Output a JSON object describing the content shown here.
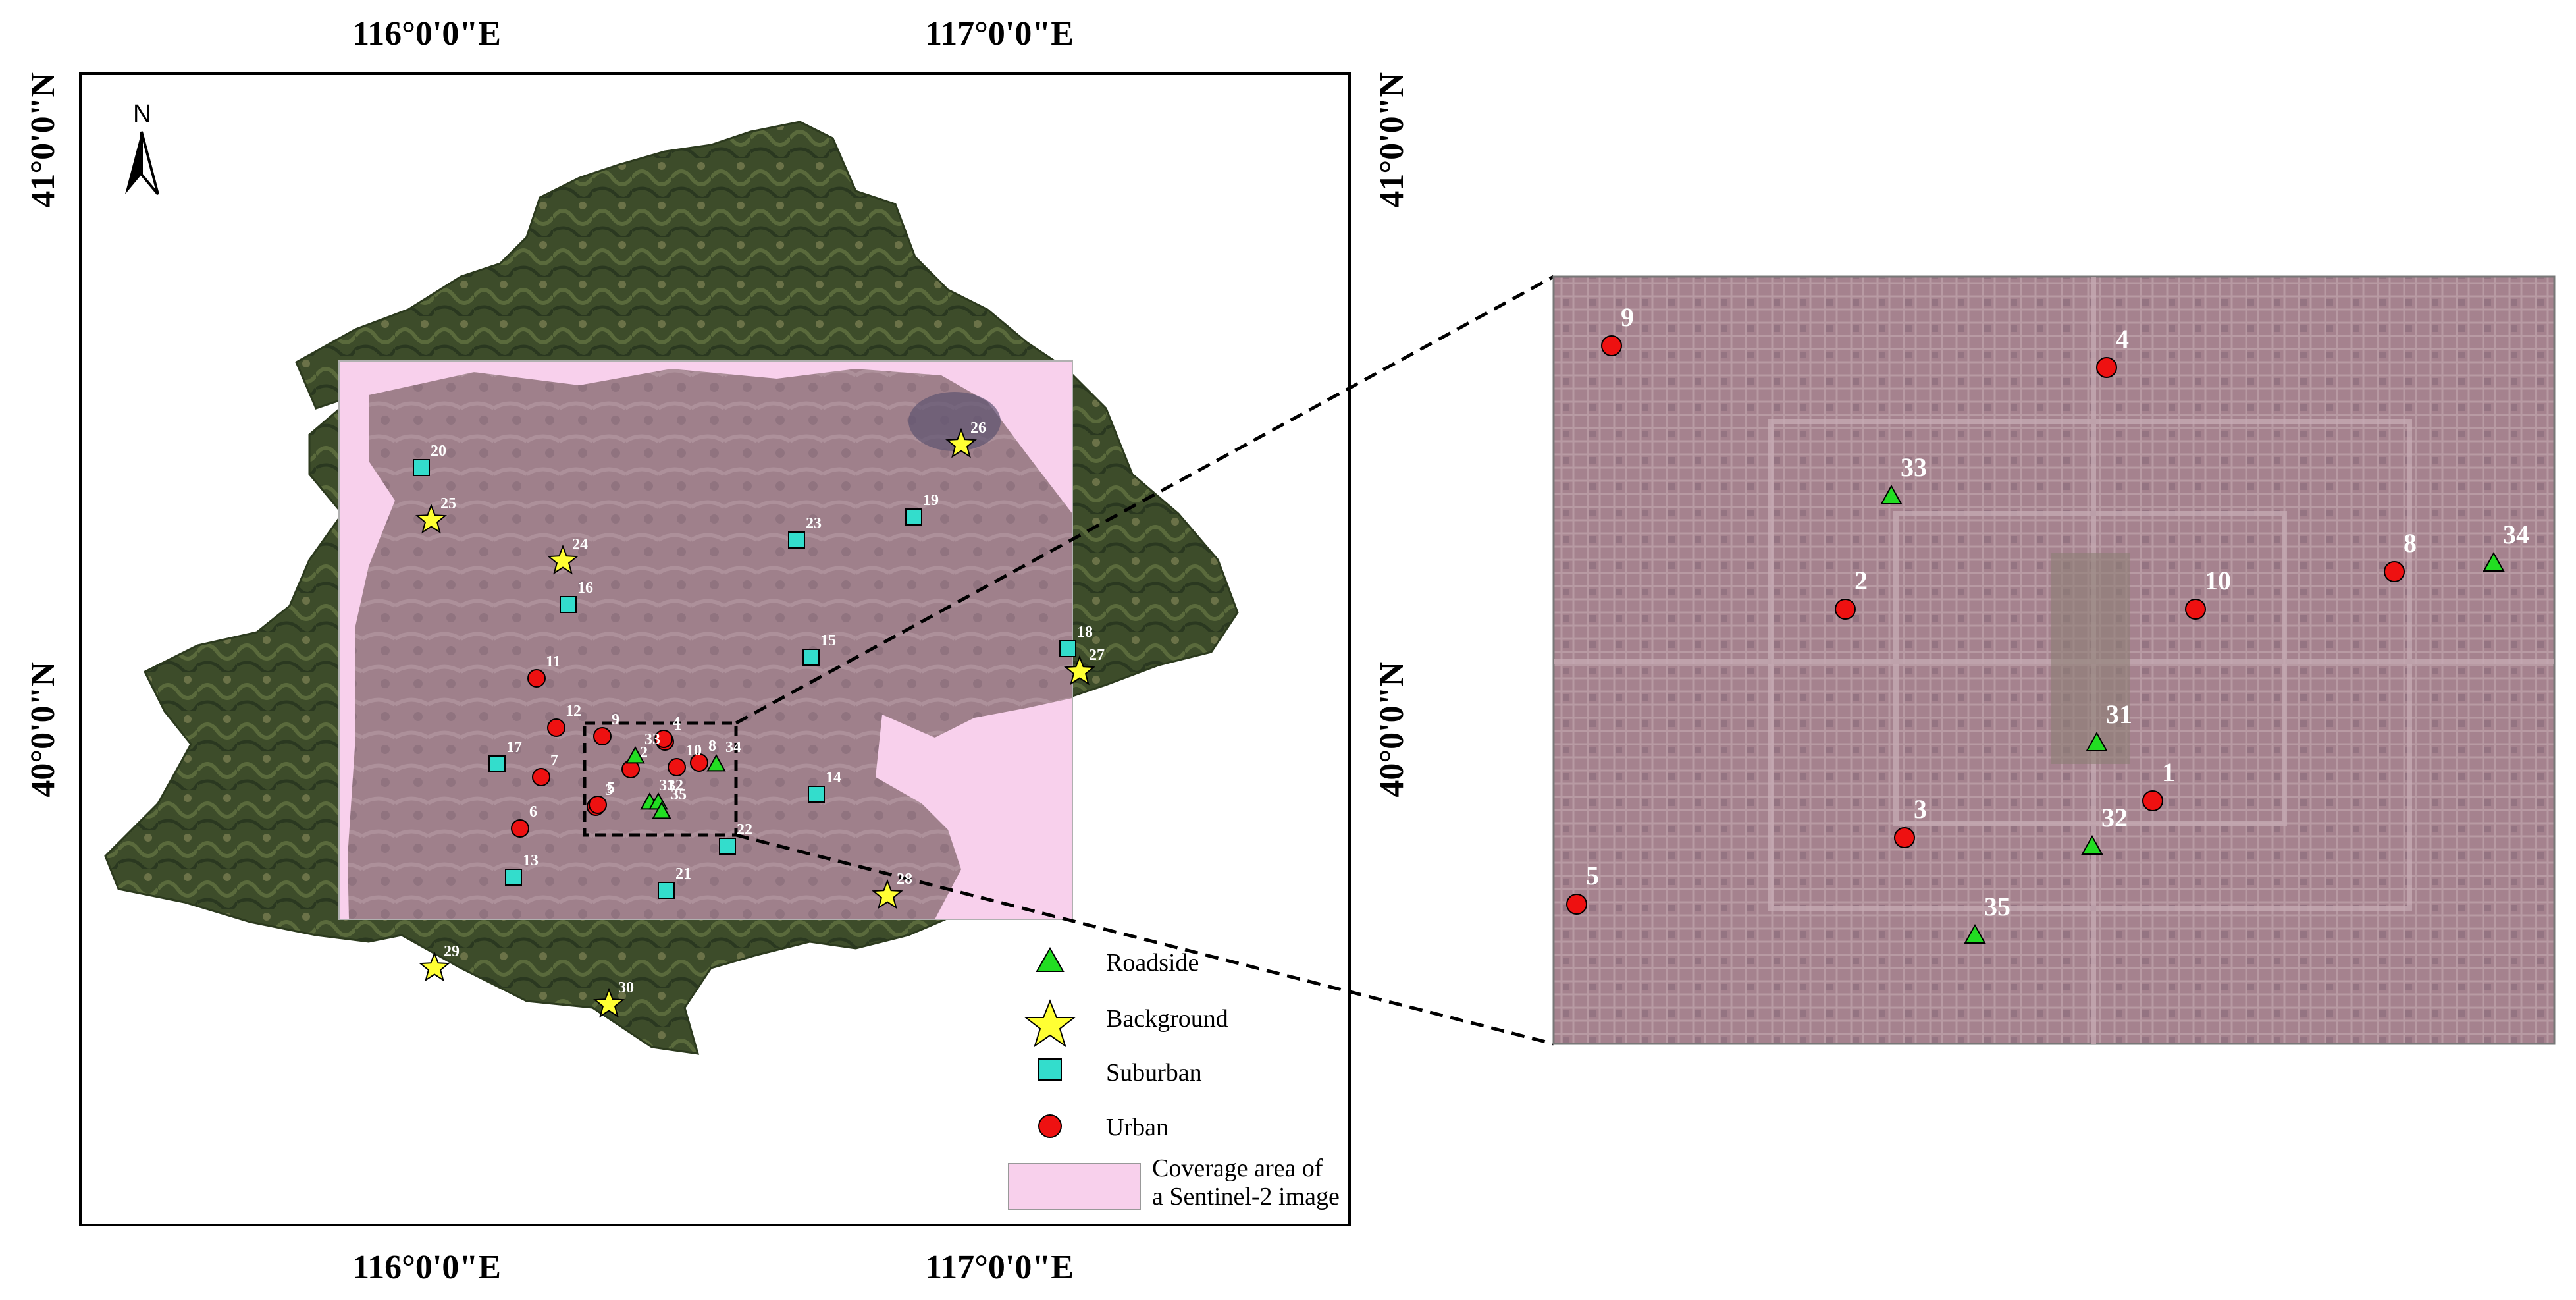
{
  "axes": {
    "lon_labels": [
      "116°0'0\"E",
      "117°0'0\"E"
    ],
    "lat_labels": [
      "41°0'0\"N",
      "40°0'0\"N"
    ]
  },
  "north_arrow": {
    "label": "N"
  },
  "legend": {
    "items": [
      {
        "label": "Roadside",
        "symbol": "triangle-icon",
        "color": "#22dd22"
      },
      {
        "label": "Background",
        "symbol": "star-icon",
        "color": "#ffff33"
      },
      {
        "label": "Suburban",
        "symbol": "square-icon",
        "color": "#33ddcc"
      },
      {
        "label": "Urban",
        "symbol": "circle-icon",
        "color": "#ee1111"
      }
    ],
    "coverage": {
      "line1": "Coverage area of",
      "line2": "a Sentinel-2 image",
      "color": "#f8d0ec"
    }
  },
  "colors": {
    "urban": "#ee1111",
    "roadside": "#22dd22",
    "background": "#ffff33",
    "suburban": "#33ddcc",
    "coverage": "#f8d0ec",
    "terrain": "#3a4a28"
  },
  "stations": {
    "urban": [
      "1",
      "2",
      "3",
      "4",
      "5",
      "6",
      "7",
      "8",
      "9",
      "10",
      "11",
      "12"
    ],
    "roadside": [
      "31",
      "32",
      "33",
      "34",
      "35"
    ],
    "suburban": [
      "13",
      "14",
      "15",
      "16",
      "17",
      "18",
      "19",
      "20",
      "21",
      "22",
      "23"
    ],
    "background": [
      "24",
      "25",
      "26",
      "27",
      "28",
      "29",
      "30"
    ]
  },
  "inset_stations": {
    "urban": [
      "9",
      "4",
      "2",
      "10",
      "8",
      "3",
      "1",
      "5"
    ],
    "roadside": [
      "33",
      "34",
      "31",
      "32",
      "35"
    ]
  }
}
